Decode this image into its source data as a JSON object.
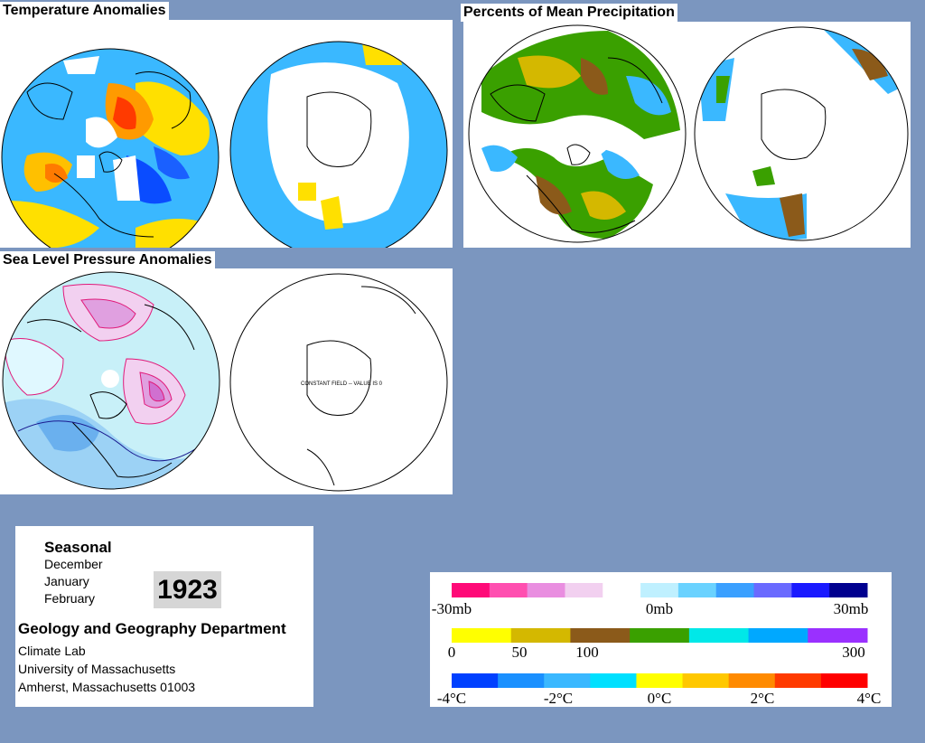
{
  "panels": {
    "temperature": {
      "title": "Temperature Anomalies"
    },
    "precipitation": {
      "title": "Percents of Mean Precipitation"
    },
    "pressure": {
      "title": "Sea Level Pressure Anomalies",
      "south_note": "CONSTANT FIELD -- VALUE IS 0"
    }
  },
  "info": {
    "season": "Seasonal",
    "months": [
      "December",
      "January",
      "February"
    ],
    "year": "1923",
    "department": "Geology and Geography Department",
    "lines": [
      "Climate Lab",
      "University of Massachusetts",
      "Amherst, Massachusetts 01003"
    ]
  },
  "legend": {
    "pressure": {
      "labels": [
        "-30mb",
        "0mb",
        "30mb"
      ],
      "colors": [
        "#ff0a78",
        "#ff4fb0",
        "#e98ee0",
        "#f2d0f0",
        "#ffffff",
        "#bff0ff",
        "#6ad2ff",
        "#3aa0ff",
        "#6a6aff",
        "#1a1aff",
        "#00008f"
      ]
    },
    "precipitation": {
      "labels": [
        "0",
        "50",
        "100",
        "300"
      ],
      "colors": [
        "#ffff00",
        "#d4b800",
        "#8b5a1a",
        "#3aa000",
        "#00e8e8",
        "#00a8ff",
        "#9a30ff"
      ]
    },
    "temperature": {
      "labels": [
        "-4°C",
        "-2°C",
        "0°C",
        "2°C",
        "4°C"
      ],
      "colors": [
        "#0040ff",
        "#1a90ff",
        "#3ab8ff",
        "#00e0ff",
        "#ffff00",
        "#ffc800",
        "#ff8a00",
        "#ff3a00",
        "#ff0000"
      ]
    }
  }
}
